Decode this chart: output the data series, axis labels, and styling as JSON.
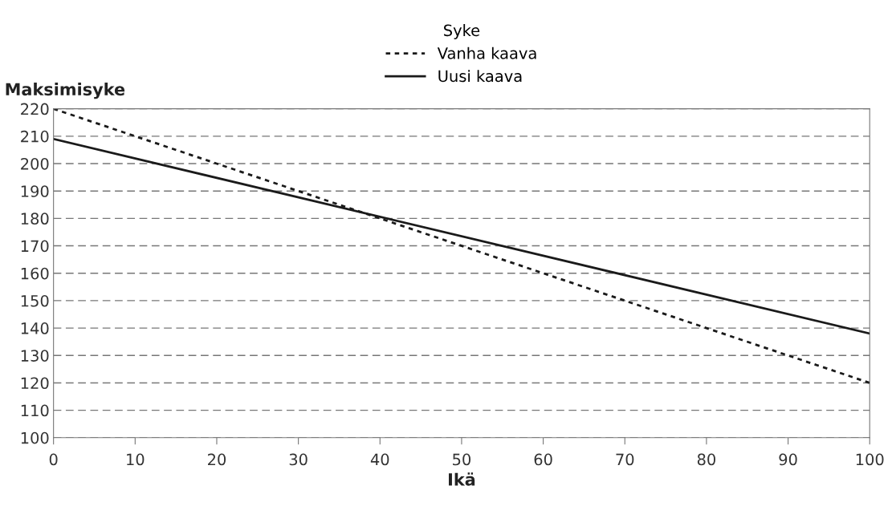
{
  "chart_data": {
    "type": "line",
    "xlabel": "Ikä",
    "ylabel": "Maksimisyke",
    "legend_title": "Syke",
    "legend": "top",
    "x": [
      0,
      100
    ],
    "series": [
      {
        "name": "Vanha kaava",
        "color": "#1a1a1a",
        "values": [
          220,
          120
        ],
        "line_style": "dotted"
      },
      {
        "name": "Uusi kaava",
        "color": "#1a1a1a",
        "values": [
          209,
          138
        ],
        "line_style": "solid"
      }
    ],
    "xlim": [
      0,
      100
    ],
    "xticks": [
      0,
      10,
      20,
      30,
      40,
      50,
      60,
      70,
      80,
      90,
      100
    ],
    "ylim": [
      100,
      220
    ],
    "yticks": [
      100,
      110,
      120,
      130,
      140,
      150,
      160,
      170,
      180,
      190,
      200,
      210,
      220
    ],
    "grid": "y",
    "marker": "none"
  }
}
